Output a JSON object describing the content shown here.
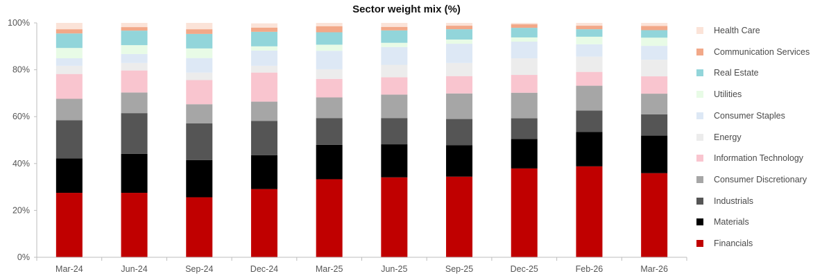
{
  "chart_data": {
    "type": "bar",
    "stacked": true,
    "title": "Sector weight mix (%)",
    "xlabel": "",
    "ylabel": "",
    "ylim": [
      0,
      100
    ],
    "y_ticks": [
      "0%",
      "20%",
      "40%",
      "60%",
      "80%",
      "100%"
    ],
    "y_tick_values": [
      0,
      20,
      40,
      60,
      80,
      100
    ],
    "grid": false,
    "legend_position": "right",
    "categories": [
      "Mar-24",
      "Jun-24",
      "Sep-24",
      "Dec-24",
      "Mar-25",
      "Jun-25",
      "Sep-25",
      "Dec-25",
      "Feb-26",
      "Mar-26"
    ],
    "series": [
      {
        "name": "Financials",
        "color": "#c00000",
        "values": [
          27.5,
          27.5,
          25.6,
          29.1,
          33.3,
          34.1,
          34.4,
          37.9,
          38.8,
          35.9
        ]
      },
      {
        "name": "Materials",
        "color": "#000000",
        "values": [
          14.7,
          16.6,
          15.9,
          14.4,
          14.7,
          14.1,
          13.4,
          12.6,
          14.7,
          16.0
        ]
      },
      {
        "name": "Industrials",
        "color": "#555555",
        "values": [
          16.3,
          17.4,
          15.6,
          14.7,
          11.4,
          11.2,
          11.2,
          8.8,
          9.1,
          9.1
        ]
      },
      {
        "name": "Consumer Discretionary",
        "color": "#a6a6a6",
        "values": [
          9.1,
          8.8,
          8.2,
          8.2,
          8.8,
          10.0,
          10.9,
          10.9,
          10.6,
          8.8
        ]
      },
      {
        "name": "Information Technology",
        "color": "#f9c5cf",
        "values": [
          10.6,
          9.4,
          10.3,
          12.4,
          7.9,
          7.4,
          7.4,
          7.6,
          5.9,
          7.4
        ]
      },
      {
        "name": "Energy",
        "color": "#ececec",
        "values": [
          3.5,
          3.2,
          3.2,
          2.9,
          4.1,
          5.3,
          5.6,
          7.1,
          6.5,
          7.1
        ]
      },
      {
        "name": "Consumer Staples",
        "color": "#dde8f5",
        "values": [
          3.2,
          3.8,
          6.2,
          6.5,
          7.9,
          7.6,
          8.2,
          7.1,
          5.3,
          5.9
        ]
      },
      {
        "name": "Utilities",
        "color": "#e8fbe6",
        "values": [
          4.4,
          3.8,
          4.1,
          1.8,
          2.6,
          1.8,
          1.8,
          1.8,
          3.2,
          3.5
        ]
      },
      {
        "name": "Real Estate",
        "color": "#92d5da",
        "values": [
          6.2,
          6.2,
          6.2,
          6.2,
          5.3,
          5.3,
          4.4,
          4.1,
          3.2,
          3.2
        ]
      },
      {
        "name": "Communication Services",
        "color": "#f2a888",
        "values": [
          1.8,
          1.5,
          2.0,
          1.8,
          2.6,
          1.5,
          1.5,
          1.5,
          1.5,
          1.8
        ]
      },
      {
        "name": "Health Care",
        "color": "#fbe3d8",
        "values": [
          2.7,
          1.8,
          2.7,
          1.8,
          1.4,
          1.7,
          1.2,
          0.6,
          1.2,
          1.3
        ]
      }
    ],
    "legend_order": [
      "Health Care",
      "Communication Services",
      "Real Estate",
      "Utilities",
      "Consumer Staples",
      "Energy",
      "Information Technology",
      "Consumer Discretionary",
      "Industrials",
      "Materials",
      "Financials"
    ]
  }
}
